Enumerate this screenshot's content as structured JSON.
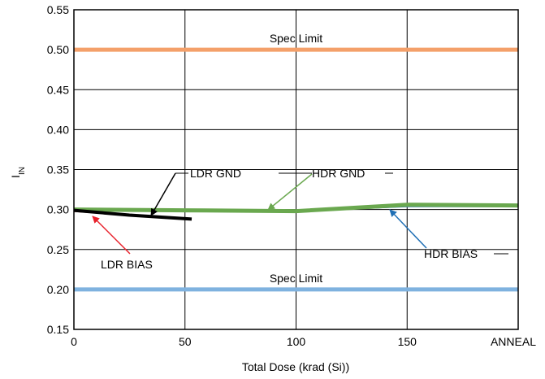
{
  "chart_data": {
    "type": "line",
    "xlabel": "Total Dose (krad (Si))",
    "ylabel_main": "I",
    "ylabel_sub": "IN",
    "xlim": [
      0,
      200
    ],
    "ylim": [
      0.15,
      0.55
    ],
    "x_ticks": [
      {
        "value": 0,
        "label": "0"
      },
      {
        "value": 50,
        "label": "50"
      },
      {
        "value": 100,
        "label": "100"
      },
      {
        "value": 150,
        "label": "150"
      },
      {
        "value": 200,
        "label": "ANNEAL"
      }
    ],
    "y_ticks": [
      "0.15",
      "0.20",
      "0.25",
      "0.30",
      "0.35",
      "0.40",
      "0.45",
      "0.50",
      "0.55"
    ],
    "grid": true,
    "spec_limits": [
      {
        "label": "Spec Limit",
        "value": 0.5,
        "color": "#f4a06a"
      },
      {
        "label": "Spec Limit",
        "value": 0.2,
        "color": "#7fb2df"
      }
    ],
    "series": [
      {
        "name": "HDR BIAS",
        "color": "#1f6fb5",
        "width": 2,
        "x": [
          0,
          50,
          100,
          150,
          200
        ],
        "y": [
          0.301,
          0.299,
          0.298,
          0.304,
          0.304
        ]
      },
      {
        "name": "HDR GND",
        "color": "#6aa84f",
        "width": 5,
        "x": [
          0,
          50,
          100,
          150,
          200
        ],
        "y": [
          0.3,
          0.299,
          0.298,
          0.306,
          0.305
        ]
      },
      {
        "name": "LDR BIAS",
        "color": "#e8202a",
        "width": 2,
        "x": [
          0,
          25,
          53
        ],
        "y": [
          0.298,
          0.293,
          0.288
        ]
      },
      {
        "name": "LDR GND",
        "color": "#000000",
        "width": 4,
        "x": [
          0,
          25,
          53
        ],
        "y": [
          0.299,
          0.293,
          0.288
        ]
      }
    ],
    "annotations": [
      {
        "text": "LDR GND",
        "color": "#000000"
      },
      {
        "text": "HDR GND",
        "color": "#6aa84f"
      },
      {
        "text": "LDR BIAS",
        "color": "#e8202a"
      },
      {
        "text": "HDR BIAS",
        "color": "#1f6fb5"
      }
    ]
  }
}
